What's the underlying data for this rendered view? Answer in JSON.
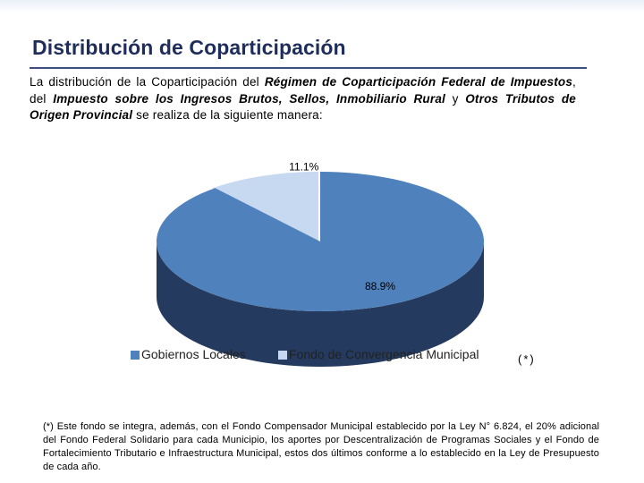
{
  "header": {
    "title": "Distribución de Coparticipación"
  },
  "intro": {
    "p1": "La distribución de la Coparticipación del ",
    "b1": "Régimen de Coparticipación Federal de Impuestos",
    "p2": ", del ",
    "b2": "Impuesto sobre los Ingresos Brutos, Sellos, Inmobiliario Rural",
    "p3": " y ",
    "b3": "Otros Tributos de Origen Provincial",
    "p4": " se realiza de la siguiente manera:"
  },
  "chart_data": {
    "type": "pie",
    "style": "3d-exploded",
    "title": "",
    "categories": [
      "Gobiernos Locales",
      "Fondo de Convergencia Municipal"
    ],
    "values": [
      88.9,
      11.1
    ],
    "data_labels": [
      "88.9%",
      "11.1%"
    ],
    "colors": [
      "#4f81bd",
      "#c6d9f1"
    ],
    "side_colors": [
      "#243a5e",
      "#5d6d80"
    ],
    "legend_position": "bottom"
  },
  "legend": {
    "items": [
      "Gobiernos Locales",
      "Fondo de Convergencia Municipal"
    ],
    "note_marker": "(*)"
  },
  "footnote": {
    "text": "(*) Este fondo se integra, además, con el Fondo Compensador Municipal establecido por la Ley N° 6.824, el 20% adicional del Fondo Federal Solidario para cada Municipio, los aportes por Descentralización de Programas Sociales y el Fondo de Fortalecimiento Tributario e Infraestructura Municipal, estos dos últimos conforme a lo establecido en la Ley de Presupuesto de cada año."
  }
}
